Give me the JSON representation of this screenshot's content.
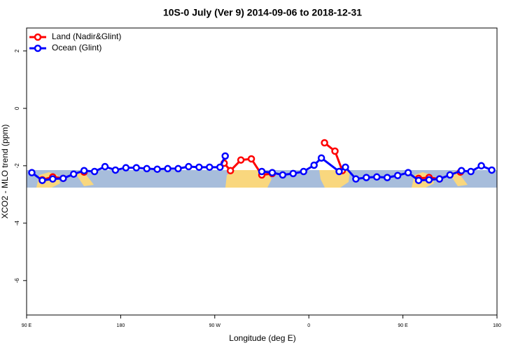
{
  "chart_data": {
    "type": "line",
    "title": "10S-0 July (Ver 9)   2014-09-06 to 2018-12-31",
    "x_label": "Longitude (deg E)",
    "y_label": "XCO2 - MLO trend (ppm)",
    "xlim": [
      90,
      540
    ],
    "ylim": [
      -7.2,
      2.8
    ],
    "xticks": [
      {
        "value": 90,
        "label": "90 E"
      },
      180,
      {
        "value": 270,
        "label": "90 W"
      },
      {
        "value": 360,
        "label": "0"
      },
      {
        "value": 450,
        "label": "90 E"
      },
      {
        "value": 540,
        "label": "180"
      }
    ],
    "yticks": [
      -6,
      -4,
      -2,
      0,
      2
    ],
    "legend": "top-left",
    "series": [
      {
        "name": "Land (Nadir&Glint)",
        "color": "#ff0000",
        "x": [
          105,
          115,
          125,
          135,
          145,
          150,
          279,
          285,
          295,
          305,
          315,
          325,
          340,
          375,
          385,
          392,
          400,
          465,
          475,
          485,
          495,
          505
        ],
        "values": [
          -2.49,
          -2.39,
          -2.44,
          null,
          -2.22,
          null,
          -1.91,
          -2.17,
          -1.8,
          -1.76,
          -2.32,
          -2.27,
          null,
          -1.2,
          -1.49,
          -2.17,
          null,
          -2.44,
          -2.41,
          -2.46,
          null,
          -2.22
        ]
      },
      {
        "name": "Ocean (Glint)",
        "color": "#0000ff",
        "x": [
          95,
          105,
          115,
          125,
          135,
          145,
          155,
          165,
          175,
          185,
          195,
          205,
          215,
          225,
          235,
          245,
          255,
          265,
          275,
          280,
          297,
          315,
          325,
          335,
          345,
          355,
          365,
          372,
          389,
          395,
          405,
          415,
          425,
          435,
          445,
          455,
          465,
          475,
          485,
          495,
          506,
          515,
          525,
          535
        ],
        "values": [
          -2.24,
          -2.51,
          -2.46,
          -2.44,
          -2.29,
          -2.17,
          -2.2,
          -2.03,
          -2.15,
          -2.07,
          -2.07,
          -2.1,
          -2.12,
          -2.1,
          -2.1,
          -2.03,
          -2.05,
          -2.05,
          -2.05,
          -1.66,
          null,
          -2.2,
          -2.24,
          -2.32,
          -2.27,
          -2.2,
          -1.98,
          -1.73,
          -2.2,
          -2.05,
          -2.46,
          -2.41,
          -2.39,
          -2.41,
          -2.34,
          -2.24,
          -2.51,
          -2.49,
          -2.46,
          -2.32,
          -2.17,
          -2.2,
          -2,
          -2.15
        ]
      }
    ]
  }
}
